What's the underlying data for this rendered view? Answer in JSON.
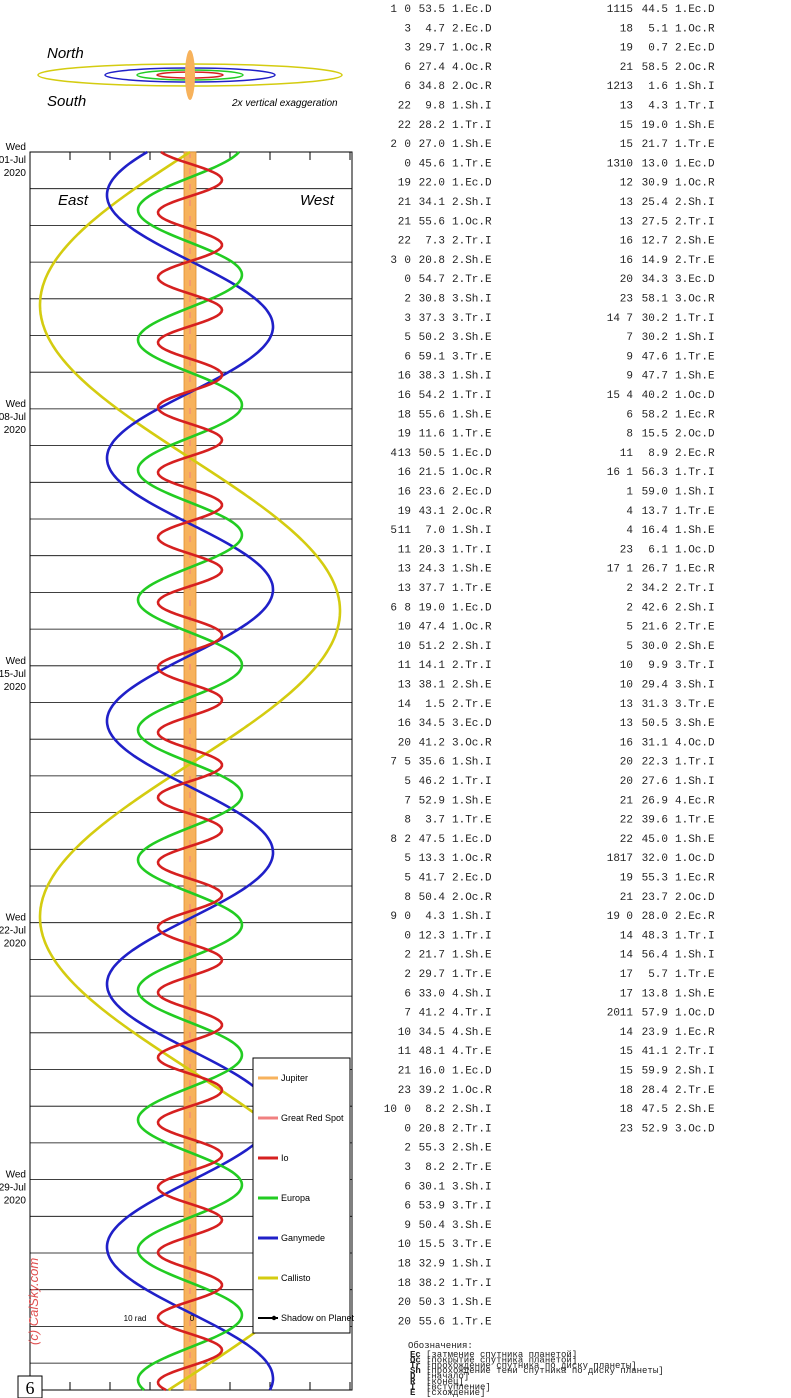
{
  "orbit_view": {
    "north": "North",
    "south": "South",
    "note": "2x vertical exaggeration"
  },
  "chart": {
    "east": "East",
    "west": "West",
    "dates": [
      {
        "weekday": "Wed",
        "date": "01-Jul",
        "year": "2020"
      },
      {
        "weekday": "Wed",
        "date": "08-Jul",
        "year": "2020"
      },
      {
        "weekday": "Wed",
        "date": "15-Jul",
        "year": "2020"
      },
      {
        "weekday": "Wed",
        "date": "22-Jul",
        "year": "2020"
      },
      {
        "weekday": "Wed",
        "date": "29-Jul",
        "year": "2020"
      }
    ],
    "scale_labels": [
      "10 rad",
      "0"
    ],
    "copyright": "(c) CalSky.com",
    "legend": [
      "Jupiter",
      "Great Red Spot",
      "Io",
      "Europa",
      "Ganymede",
      "Callisto",
      "Shadow on Planet"
    ]
  },
  "events": {
    "columns": [
      [
        {
          "day": "1",
          "hour": "0",
          "min": "53.5",
          "event": "1.Ec.D"
        },
        {
          "hour": "3",
          "min": "4.7",
          "event": "2.Ec.D"
        },
        {
          "hour": "3",
          "min": "29.7",
          "event": "1.Oc.R"
        },
        {
          "hour": "6",
          "min": "27.4",
          "event": "4.Oc.R"
        },
        {
          "hour": "6",
          "min": "34.8",
          "event": "2.Oc.R"
        },
        {
          "hour": "22",
          "min": "9.8",
          "event": "1.Sh.I"
        },
        {
          "hour": "22",
          "min": "28.2",
          "event": "1.Tr.I"
        },
        {
          "day": "2",
          "hour": "0",
          "min": "27.0",
          "event": "1.Sh.E"
        },
        {
          "hour": "0",
          "min": "45.6",
          "event": "1.Tr.E"
        },
        {
          "hour": "19",
          "min": "22.0",
          "event": "1.Ec.D"
        },
        {
          "hour": "21",
          "min": "34.1",
          "event": "2.Sh.I"
        },
        {
          "hour": "21",
          "min": "55.6",
          "event": "1.Oc.R"
        },
        {
          "hour": "22",
          "min": "7.3",
          "event": "2.Tr.I"
        },
        {
          "day": "3",
          "hour": "0",
          "min": "20.8",
          "event": "2.Sh.E"
        },
        {
          "hour": "0",
          "min": "54.7",
          "event": "2.Tr.E"
        },
        {
          "hour": "2",
          "min": "30.8",
          "event": "3.Sh.I"
        },
        {
          "hour": "3",
          "min": "37.3",
          "event": "3.Tr.I"
        },
        {
          "hour": "5",
          "min": "50.2",
          "event": "3.Sh.E"
        },
        {
          "hour": "6",
          "min": "59.1",
          "event": "3.Tr.E"
        },
        {
          "hour": "16",
          "min": "38.3",
          "event": "1.Sh.I"
        },
        {
          "hour": "16",
          "min": "54.2",
          "event": "1.Tr.I"
        },
        {
          "hour": "18",
          "min": "55.6",
          "event": "1.Sh.E"
        },
        {
          "hour": "19",
          "min": "11.6",
          "event": "1.Tr.E"
        },
        {
          "day": "4",
          "hour": "13",
          "min": "50.5",
          "event": "1.Ec.D"
        },
        {
          "hour": "16",
          "min": "21.5",
          "event": "1.Oc.R"
        },
        {
          "hour": "16",
          "min": "23.6",
          "event": "2.Ec.D"
        },
        {
          "hour": "19",
          "min": "43.1",
          "event": "2.Oc.R"
        },
        {
          "day": "5",
          "hour": "11",
          "min": "7.0",
          "event": "1.Sh.I"
        },
        {
          "hour": "11",
          "min": "20.3",
          "event": "1.Tr.I"
        },
        {
          "hour": "13",
          "min": "24.3",
          "event": "1.Sh.E"
        },
        {
          "hour": "13",
          "min": "37.7",
          "event": "1.Tr.E"
        },
        {
          "day": "6",
          "hour": "8",
          "min": "19.0",
          "event": "1.Ec.D"
        },
        {
          "hour": "10",
          "min": "47.4",
          "event": "1.Oc.R"
        },
        {
          "hour": "10",
          "min": "51.2",
          "event": "2.Sh.I"
        },
        {
          "hour": "11",
          "min": "14.1",
          "event": "2.Tr.I"
        },
        {
          "hour": "13",
          "min": "38.1",
          "event": "2.Sh.E"
        },
        {
          "hour": "14",
          "min": "1.5",
          "event": "2.Tr.E"
        },
        {
          "hour": "16",
          "min": "34.5",
          "event": "3.Ec.D"
        },
        {
          "hour": "20",
          "min": "41.2",
          "event": "3.Oc.R"
        },
        {
          "day": "7",
          "hour": "5",
          "min": "35.6",
          "event": "1.Sh.I"
        },
        {
          "hour": "5",
          "min": "46.2",
          "event": "1.Tr.I"
        },
        {
          "hour": "7",
          "min": "52.9",
          "event": "1.Sh.E"
        },
        {
          "hour": "8",
          "min": "3.7",
          "event": "1.Tr.E"
        },
        {
          "day": "8",
          "hour": "2",
          "min": "47.5",
          "event": "1.Ec.D"
        },
        {
          "hour": "5",
          "min": "13.3",
          "event": "1.Oc.R"
        },
        {
          "hour": "5",
          "min": "41.7",
          "event": "2.Ec.D"
        },
        {
          "hour": "8",
          "min": "50.4",
          "event": "2.Oc.R"
        },
        {
          "day": "9",
          "hour": "0",
          "min": "4.3",
          "event": "1.Sh.I"
        },
        {
          "hour": "0",
          "min": "12.3",
          "event": "1.Tr.I"
        },
        {
          "hour": "2",
          "min": "21.7",
          "event": "1.Sh.E"
        },
        {
          "hour": "2",
          "min": "29.7",
          "event": "1.Tr.E"
        },
        {
          "hour": "6",
          "min": "33.0",
          "event": "4.Sh.I"
        },
        {
          "hour": "7",
          "min": "41.2",
          "event": "4.Tr.I"
        },
        {
          "hour": "10",
          "min": "34.5",
          "event": "4.Sh.E"
        },
        {
          "hour": "11",
          "min": "48.1",
          "event": "4.Tr.E"
        },
        {
          "hour": "21",
          "min": "16.0",
          "event": "1.Ec.D"
        },
        {
          "hour": "23",
          "min": "39.2",
          "event": "1.Oc.R"
        },
        {
          "day": "10",
          "hour": "0",
          "min": "8.2",
          "event": "2.Sh.I"
        },
        {
          "hour": "0",
          "min": "20.8",
          "event": "2.Tr.I"
        },
        {
          "hour": "2",
          "min": "55.3",
          "event": "2.Sh.E"
        },
        {
          "hour": "3",
          "min": "8.2",
          "event": "2.Tr.E"
        },
        {
          "hour": "6",
          "min": "30.1",
          "event": "3.Sh.I"
        },
        {
          "hour": "6",
          "min": "53.9",
          "event": "3.Tr.I"
        },
        {
          "hour": "9",
          "min": "50.4",
          "event": "3.Sh.E"
        },
        {
          "hour": "10",
          "min": "15.5",
          "event": "3.Tr.E"
        },
        {
          "hour": "18",
          "min": "32.9",
          "event": "1.Sh.I"
        },
        {
          "hour": "18",
          "min": "38.2",
          "event": "1.Tr.I"
        },
        {
          "hour": "20",
          "min": "50.3",
          "event": "1.Sh.E"
        },
        {
          "hour": "20",
          "min": "55.6",
          "event": "1.Tr.E"
        }
      ],
      [
        {
          "day": "11",
          "hour": "15",
          "min": "44.5",
          "event": "1.Ec.D"
        },
        {
          "hour": "18",
          "min": "5.1",
          "event": "1.Oc.R"
        },
        {
          "hour": "19",
          "min": "0.7",
          "event": "2.Ec.D"
        },
        {
          "hour": "21",
          "min": "58.5",
          "event": "2.Oc.R"
        },
        {
          "day": "12",
          "hour": "13",
          "min": "1.6",
          "event": "1.Sh.I"
        },
        {
          "hour": "13",
          "min": "4.3",
          "event": "1.Tr.I"
        },
        {
          "hour": "15",
          "min": "19.0",
          "event": "1.Sh.E"
        },
        {
          "hour": "15",
          "min": "21.7",
          "event": "1.Tr.E"
        },
        {
          "day": "13",
          "hour": "10",
          "min": "13.0",
          "event": "1.Ec.D"
        },
        {
          "hour": "12",
          "min": "30.9",
          "event": "1.Oc.R"
        },
        {
          "hour": "13",
          "min": "25.4",
          "event": "2.Sh.I"
        },
        {
          "hour": "13",
          "min": "27.5",
          "event": "2.Tr.I"
        },
        {
          "hour": "16",
          "min": "12.7",
          "event": "2.Sh.E"
        },
        {
          "hour": "16",
          "min": "14.9",
          "event": "2.Tr.E"
        },
        {
          "hour": "20",
          "min": "34.3",
          "event": "3.Ec.D"
        },
        {
          "hour": "23",
          "min": "58.1",
          "event": "3.Oc.R"
        },
        {
          "day": "14",
          "hour": "7",
          "min": "30.2",
          "event": "1.Tr.I"
        },
        {
          "hour": "7",
          "min": "30.2",
          "event": "1.Sh.I"
        },
        {
          "hour": "9",
          "min": "47.6",
          "event": "1.Tr.E"
        },
        {
          "hour": "9",
          "min": "47.7",
          "event": "1.Sh.E"
        },
        {
          "day": "15",
          "hour": "4",
          "min": "40.2",
          "event": "1.Oc.D"
        },
        {
          "hour": "6",
          "min": "58.2",
          "event": "1.Ec.R"
        },
        {
          "hour": "8",
          "min": "15.5",
          "event": "2.Oc.D"
        },
        {
          "hour": "11",
          "min": "8.9",
          "event": "2.Ec.R"
        },
        {
          "day": "16",
          "hour": "1",
          "min": "56.3",
          "event": "1.Tr.I"
        },
        {
          "hour": "1",
          "min": "59.0",
          "event": "1.Sh.I"
        },
        {
          "hour": "4",
          "min": "13.7",
          "event": "1.Tr.E"
        },
        {
          "hour": "4",
          "min": "16.4",
          "event": "1.Sh.E"
        },
        {
          "hour": "23",
          "min": "6.1",
          "event": "1.Oc.D"
        },
        {
          "day": "17",
          "hour": "1",
          "min": "26.7",
          "event": "1.Ec.R"
        },
        {
          "hour": "2",
          "min": "34.2",
          "event": "2.Tr.I"
        },
        {
          "hour": "2",
          "min": "42.6",
          "event": "2.Sh.I"
        },
        {
          "hour": "5",
          "min": "21.6",
          "event": "2.Tr.E"
        },
        {
          "hour": "5",
          "min": "30.0",
          "event": "2.Sh.E"
        },
        {
          "hour": "10",
          "min": "9.9",
          "event": "3.Tr.I"
        },
        {
          "hour": "10",
          "min": "29.4",
          "event": "3.Sh.I"
        },
        {
          "hour": "13",
          "min": "31.3",
          "event": "3.Tr.E"
        },
        {
          "hour": "13",
          "min": "50.5",
          "event": "3.Sh.E"
        },
        {
          "hour": "16",
          "min": "31.1",
          "event": "4.Oc.D"
        },
        {
          "hour": "20",
          "min": "22.3",
          "event": "1.Tr.I"
        },
        {
          "hour": "20",
          "min": "27.6",
          "event": "1.Sh.I"
        },
        {
          "hour": "21",
          "min": "26.9",
          "event": "4.Ec.R"
        },
        {
          "hour": "22",
          "min": "39.6",
          "event": "1.Tr.E"
        },
        {
          "hour": "22",
          "min": "45.0",
          "event": "1.Sh.E"
        },
        {
          "day": "18",
          "hour": "17",
          "min": "32.0",
          "event": "1.Oc.D"
        },
        {
          "hour": "19",
          "min": "55.3",
          "event": "1.Ec.R"
        },
        {
          "hour": "21",
          "min": "23.7",
          "event": "2.Oc.D"
        },
        {
          "day": "19",
          "hour": "0",
          "min": "28.0",
          "event": "2.Ec.R"
        },
        {
          "hour": "14",
          "min": "48.3",
          "event": "1.Tr.I"
        },
        {
          "hour": "14",
          "min": "56.4",
          "event": "1.Sh.I"
        },
        {
          "hour": "17",
          "min": "5.7",
          "event": "1.Tr.E"
        },
        {
          "hour": "17",
          "min": "13.8",
          "event": "1.Sh.E"
        },
        {
          "day": "20",
          "hour": "11",
          "min": "57.9",
          "event": "1.Oc.D"
        },
        {
          "hour": "14",
          "min": "23.9",
          "event": "1.Ec.R"
        },
        {
          "hour": "15",
          "min": "41.1",
          "event": "2.Tr.I"
        },
        {
          "hour": "15",
          "min": "59.9",
          "event": "2.Sh.I"
        },
        {
          "hour": "18",
          "min": "28.4",
          "event": "2.Tr.E"
        },
        {
          "hour": "18",
          "min": "47.5",
          "event": "2.Sh.E"
        },
        {
          "hour": "23",
          "min": "52.9",
          "event": "3.Oc.D"
        }
      ]
    ]
  },
  "key": {
    "title": "Обозначения:",
    "items": [
      {
        "code": "Ec",
        "text": "[затмение спутника планетой]"
      },
      {
        "code": "Oc",
        "text": "[покрытие спутника планетой]"
      },
      {
        "code": "Tr",
        "text": "[прохождение спутника по диску планеты]"
      },
      {
        "code": "Sh",
        "text": "[прохождение тени спутника по диску планеты]"
      },
      {
        "code": "D",
        "text": "[начало]"
      },
      {
        "code": "R",
        "text": "[конец]"
      },
      {
        "code": "I",
        "text": "[вступление]"
      },
      {
        "code": "E",
        "text": "[схождение]"
      }
    ]
  },
  "page_number": "6"
}
